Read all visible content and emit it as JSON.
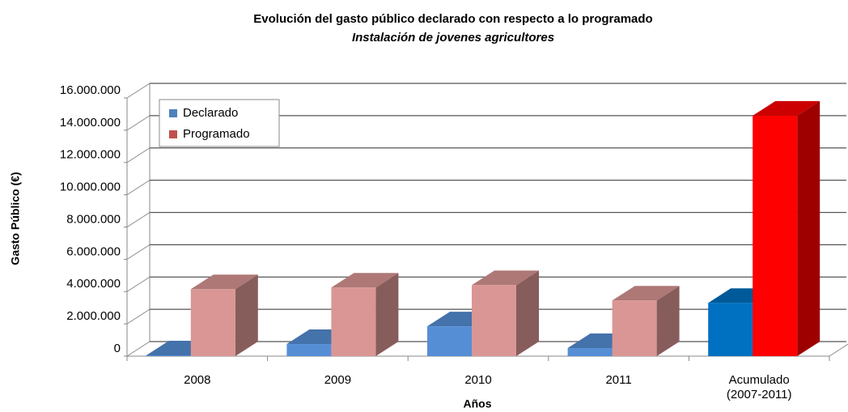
{
  "chart_data": {
    "type": "bar3d",
    "title": "Evolución del gasto público declarado con respecto a lo programado",
    "subtitle": "Instalación de jovenes agricultores",
    "x_label": "Años",
    "y_label": "Gasto Público (€)",
    "categories": [
      "2008",
      "2009",
      "2010",
      "2011",
      "Acumulado\n(2007-2011)"
    ],
    "series": [
      {
        "name": "Declarado",
        "color": "#4f81bd",
        "colors": [
          "#558ed5",
          "#558ed5",
          "#558ed5",
          "#558ed5",
          "#0070c0"
        ],
        "values": [
          50000,
          750000,
          1850000,
          500000,
          3300000
        ]
      },
      {
        "name": "Programado",
        "color": "#c0504d",
        "colors": [
          "#d99694",
          "#d99694",
          "#d99694",
          "#d99694",
          "#ff0000"
        ],
        "values": [
          4150000,
          4250000,
          4400000,
          3450000,
          14900000
        ]
      }
    ],
    "ylim": [
      0,
      16000000
    ],
    "yticks": [
      0,
      {
        "value": 2000000,
        "label": "2.000.000"
      },
      {
        "value": 4000000,
        "label": "4.000.000"
      },
      {
        "value": 6000000,
        "label": "6.000.000"
      },
      {
        "value": 8000000,
        "label": "8.000.000"
      },
      {
        "value": 10000000,
        "label": "10.000.000"
      },
      {
        "value": 12000000,
        "label": "12.000.000"
      },
      {
        "value": 14000000,
        "label": "14.000.000"
      },
      {
        "value": 16000000,
        "label": "16.000.000"
      }
    ],
    "grid": true,
    "legend": "top-left"
  }
}
